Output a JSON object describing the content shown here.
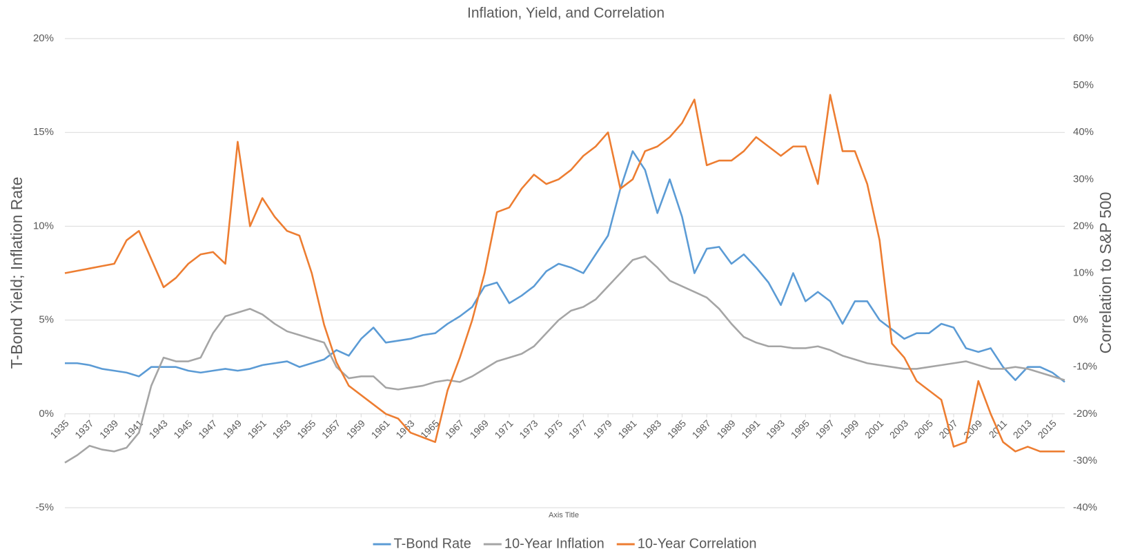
{
  "chart_data": {
    "type": "line",
    "title": "Inflation, Yield, and Correlation",
    "x_label": "Axis Title",
    "y_label": "T-Bond Yield; Inflation Rate",
    "y2_label": "Correlation to S&P 500",
    "x": [
      1935,
      1936,
      1937,
      1938,
      1939,
      1940,
      1941,
      1942,
      1943,
      1944,
      1945,
      1946,
      1947,
      1948,
      1949,
      1950,
      1951,
      1952,
      1953,
      1954,
      1955,
      1956,
      1957,
      1958,
      1959,
      1960,
      1961,
      1962,
      1963,
      1964,
      1965,
      1966,
      1967,
      1968,
      1969,
      1970,
      1971,
      1972,
      1973,
      1974,
      1975,
      1976,
      1977,
      1978,
      1979,
      1980,
      1981,
      1982,
      1983,
      1984,
      1985,
      1986,
      1987,
      1988,
      1989,
      1990,
      1991,
      1992,
      1993,
      1994,
      1995,
      1996,
      1997,
      1998,
      1999,
      2000,
      2001,
      2002,
      2003,
      2004,
      2005,
      2006,
      2007,
      2008,
      2009,
      2010,
      2011,
      2012,
      2013,
      2014,
      2015,
      2016
    ],
    "xlim": [
      1935,
      2016
    ],
    "xticks": [
      1935,
      1937,
      1939,
      1941,
      1943,
      1945,
      1947,
      1949,
      1951,
      1953,
      1955,
      1957,
      1959,
      1961,
      1963,
      1965,
      1967,
      1969,
      1971,
      1973,
      1975,
      1977,
      1979,
      1981,
      1983,
      1985,
      1987,
      1989,
      1991,
      1993,
      1995,
      1997,
      1999,
      2001,
      2003,
      2005,
      2007,
      2009,
      2011,
      2013,
      2015
    ],
    "ylim": [
      -5,
      20
    ],
    "yticks": [
      {
        "value": -5,
        "label": "-5%"
      },
      {
        "value": 0,
        "label": "0%"
      },
      {
        "value": 5,
        "label": "5%"
      },
      {
        "value": 10,
        "label": "10%"
      },
      {
        "value": 15,
        "label": "15%"
      },
      {
        "value": 20,
        "label": "20%"
      }
    ],
    "y2lim": [
      -40,
      60
    ],
    "y2ticks": [
      {
        "value": -40,
        "label": "-40%"
      },
      {
        "value": -30,
        "label": "-30%"
      },
      {
        "value": -20,
        "label": "-20%"
      },
      {
        "value": -10,
        "label": "-10%"
      },
      {
        "value": 0,
        "label": "0%"
      },
      {
        "value": 10,
        "label": "10%"
      },
      {
        "value": 20,
        "label": "20%"
      },
      {
        "value": 30,
        "label": "30%"
      },
      {
        "value": 40,
        "label": "40%"
      },
      {
        "value": 50,
        "label": "50%"
      },
      {
        "value": 60,
        "label": "60%"
      }
    ],
    "grid": true,
    "legend": "bottom",
    "series": [
      {
        "name": "T-Bond Rate",
        "color": "#5b9bd5",
        "values": [
          2.7,
          2.7,
          2.6,
          2.4,
          2.3,
          2.2,
          2.0,
          2.5,
          2.5,
          2.5,
          2.3,
          2.2,
          2.3,
          2.4,
          2.3,
          2.4,
          2.6,
          2.7,
          2.8,
          2.5,
          2.7,
          2.9,
          3.4,
          3.1,
          4.0,
          4.6,
          3.8,
          3.9,
          4.0,
          4.2,
          4.3,
          4.8,
          5.2,
          5.7,
          6.8,
          7.0,
          5.9,
          6.3,
          6.8,
          7.6,
          8.0,
          7.8,
          7.5,
          8.5,
          9.5,
          12.0,
          14.0,
          13.0,
          10.7,
          12.5,
          10.5,
          7.5,
          8.8,
          8.9,
          8.0,
          8.5,
          7.8,
          7.0,
          5.8,
          7.5,
          6.0,
          6.5,
          6.0,
          4.8,
          6.0,
          6.0,
          5.0,
          4.5,
          4.0,
          4.3,
          4.3,
          4.8,
          4.6,
          3.5,
          3.3,
          3.5,
          2.5,
          1.8,
          2.5,
          2.5,
          2.2,
          1.7
        ]
      },
      {
        "name": "10-Year Inflation",
        "color": "#a5a5a5",
        "values": [
          -2.6,
          -2.2,
          -1.7,
          -1.9,
          -2.0,
          -1.8,
          -1.0,
          1.5,
          3.0,
          2.8,
          2.8,
          3.0,
          4.3,
          5.2,
          5.4,
          5.6,
          5.3,
          4.8,
          4.4,
          4.2,
          4.0,
          3.8,
          2.5,
          1.9,
          2.0,
          2.0,
          1.4,
          1.3,
          1.4,
          1.5,
          1.7,
          1.8,
          1.7,
          2.0,
          2.4,
          2.8,
          3.0,
          3.2,
          3.6,
          4.3,
          5.0,
          5.5,
          5.7,
          6.1,
          6.8,
          7.5,
          8.2,
          8.4,
          7.8,
          7.1,
          6.8,
          6.5,
          6.2,
          5.6,
          4.8,
          4.1,
          3.8,
          3.6,
          3.6,
          3.5,
          3.5,
          3.6,
          3.4,
          3.1,
          2.9,
          2.7,
          2.6,
          2.5,
          2.4,
          2.4,
          2.5,
          2.6,
          2.7,
          2.8,
          2.6,
          2.4,
          2.4,
          2.5,
          2.4,
          2.2,
          2.0,
          1.8
        ]
      },
      {
        "name": "10-Year Correlation",
        "color": "#ed7d31",
        "axis": "y2",
        "values": [
          10,
          10.5,
          11,
          11.5,
          12,
          17,
          19,
          13,
          7,
          9,
          12,
          14,
          14.5,
          12,
          38,
          20,
          26,
          22,
          19,
          18,
          10,
          -1,
          -9,
          -14,
          -16,
          -18,
          -20,
          -21,
          -24,
          -25,
          -26,
          -15,
          -8,
          0,
          10,
          23,
          24,
          28,
          31,
          29,
          30,
          32,
          35,
          37,
          40,
          28,
          30,
          36,
          37,
          39,
          42,
          47,
          33,
          34,
          34,
          36,
          39,
          37,
          35,
          37,
          37,
          29,
          48,
          36,
          36,
          29,
          17,
          -5,
          -8,
          -13,
          -15,
          -17,
          -27,
          -26,
          -13,
          -20,
          -26,
          -28,
          -27,
          -28,
          -28,
          -28
        ]
      }
    ]
  }
}
